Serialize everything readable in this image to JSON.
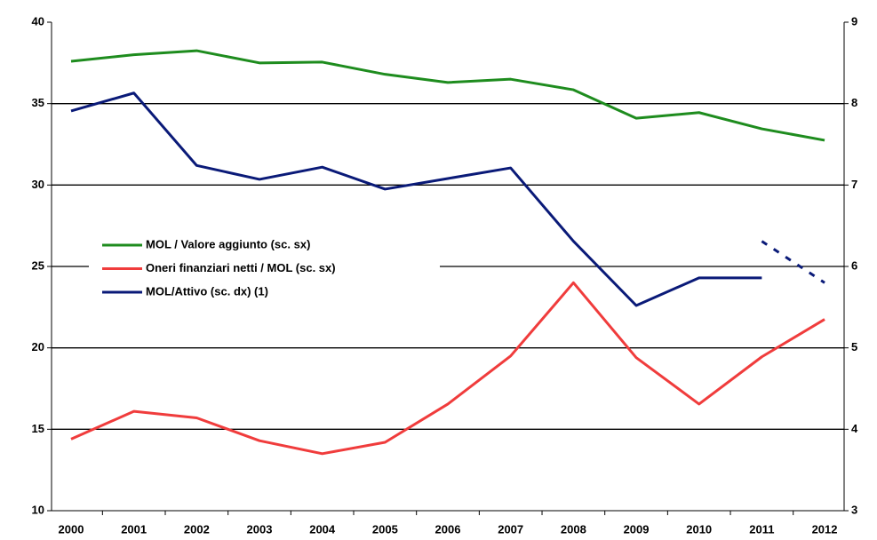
{
  "chart_data": {
    "type": "line",
    "categories": [
      "2000",
      "2001",
      "2002",
      "2003",
      "2004",
      "2005",
      "2006",
      "2007",
      "2008",
      "2009",
      "2010",
      "2011",
      "2012"
    ],
    "ylim": [
      10,
      40
    ],
    "yticks": [
      10,
      15,
      20,
      25,
      30,
      35,
      40
    ],
    "y2lim": [
      3,
      9
    ],
    "y2ticks": [
      3,
      4,
      5,
      6,
      7,
      8,
      9
    ],
    "grid": true,
    "legend": "left",
    "series": [
      {
        "name": "MOL / Valore aggiunto (sc. sx)",
        "color": "#1e8c1e",
        "values": [
          37.6,
          38.0,
          38.25,
          37.5,
          37.55,
          36.8,
          36.3,
          36.5,
          35.85,
          34.1,
          34.45,
          33.45,
          32.75
        ]
      },
      {
        "name": "Oneri finanziari netti / MOL  (sc. sx)",
        "color": "#f03c3c",
        "values": [
          14.4,
          16.1,
          15.7,
          14.3,
          13.5,
          14.2,
          16.55,
          19.5,
          24.0,
          19.4,
          16.55,
          19.45,
          21.75
        ]
      },
      {
        "name": "MOL/Attivo (sc. dx) (1)",
        "color": "#0a1a78",
        "axis": "y2",
        "values": [
          7.91,
          8.13,
          7.24,
          7.07,
          7.22,
          6.95,
          7.08,
          7.21,
          6.31,
          5.52,
          5.86,
          5.86,
          null
        ]
      },
      {
        "color": "#0a1a78",
        "axis": "y2",
        "dashed": true,
        "values": [
          null,
          null,
          null,
          null,
          null,
          null,
          null,
          null,
          null,
          null,
          null,
          6.31,
          5.8
        ]
      }
    ]
  }
}
